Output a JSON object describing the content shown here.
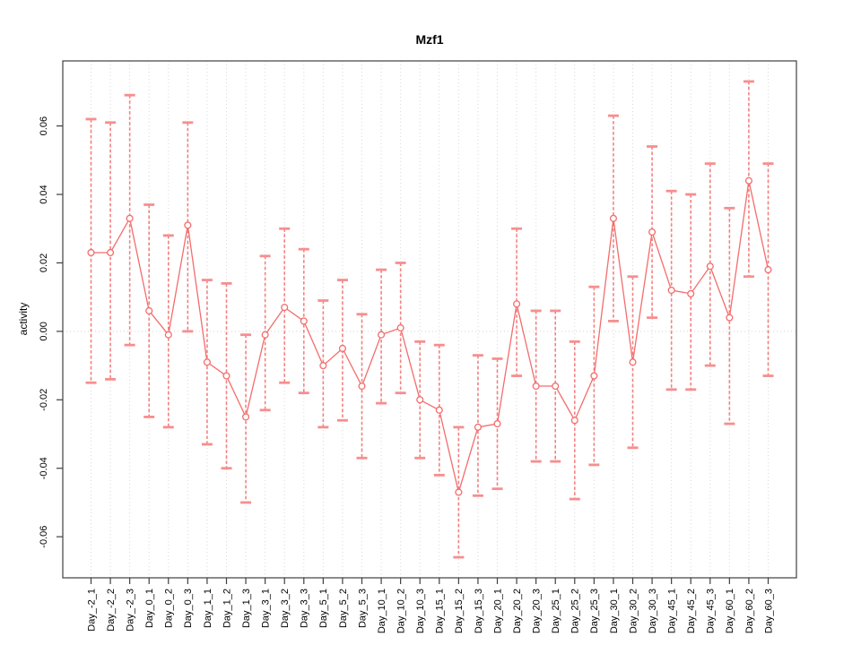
{
  "chart_data": {
    "type": "line",
    "title": "Mzf1",
    "ylabel": "activity",
    "xlabel": "",
    "legend": "none",
    "marker": "open-circle",
    "grid": "vertical dotted gridline per category; dotted horizontal line at y=0",
    "ylim": [
      -0.072,
      0.079
    ],
    "yticks": [
      0.06,
      0.04,
      0.02,
      0,
      -0.02,
      -0.04,
      -0.06
    ],
    "categories": [
      "Day_-2_1",
      "Day_-2_2",
      "Day_-2_3",
      "Day_0_1",
      "Day_0_2",
      "Day_0_3",
      "Day_1_1",
      "Day_1_2",
      "Day_1_3",
      "Day_3_1",
      "Day_3_2",
      "Day_3_3",
      "Day_5_1",
      "Day_5_2",
      "Day_5_3",
      "Day_10_1",
      "Day_10_2",
      "Day_10_3",
      "Day_15_1",
      "Day_15_2",
      "Day_15_3",
      "Day_20_1",
      "Day_20_2",
      "Day_20_3",
      "Day_25_1",
      "Day_25_2",
      "Day_25_3",
      "Day_30_1",
      "Day_30_2",
      "Day_30_3",
      "Day_45_1",
      "Day_45_2",
      "Day_45_3",
      "Day_60_1",
      "Day_60_2",
      "Day_60_3"
    ],
    "series": [
      {
        "name": "activity",
        "values": [
          0.023,
          0.023,
          0.033,
          0.006,
          -0.001,
          0.031,
          -0.009,
          -0.013,
          -0.025,
          -0.001,
          0.007,
          0.003,
          -0.01,
          -0.005,
          -0.016,
          -0.001,
          0.001,
          -0.02,
          -0.023,
          -0.047,
          -0.028,
          -0.027,
          0.008,
          -0.016,
          -0.016,
          -0.026,
          -0.013,
          0.033,
          -0.009,
          0.029,
          0.012,
          0.011,
          0.019,
          0.004,
          0.044,
          0.018
        ],
        "upper": [
          0.062,
          0.061,
          0.069,
          0.037,
          0.028,
          0.061,
          0.015,
          0.014,
          -0.001,
          0.022,
          0.03,
          0.024,
          0.009,
          0.015,
          0.005,
          0.018,
          0.02,
          -0.003,
          -0.004,
          -0.028,
          -0.007,
          -0.008,
          0.03,
          0.006,
          0.006,
          -0.003,
          0.013,
          0.063,
          0.016,
          0.054,
          0.041,
          0.04,
          0.049,
          0.036,
          0.073,
          0.049
        ],
        "lower": [
          -0.015,
          -0.014,
          -0.004,
          -0.025,
          -0.028,
          0.0,
          -0.033,
          -0.04,
          -0.05,
          -0.023,
          -0.015,
          -0.018,
          -0.028,
          -0.026,
          -0.037,
          -0.021,
          -0.018,
          -0.037,
          -0.042,
          -0.066,
          -0.048,
          -0.046,
          -0.013,
          -0.038,
          -0.038,
          -0.049,
          -0.039,
          0.003,
          -0.034,
          0.004,
          -0.017,
          -0.017,
          -0.01,
          -0.027,
          0.016,
          -0.013
        ]
      }
    ],
    "colors": {
      "line": "#f46c6c",
      "error_stem": "#f47474",
      "error_cap": "#f78e8e",
      "marker_fill": "#ffffff",
      "grid": "#d9d9d9",
      "zero_line": "#d4d4d4",
      "frame": "#3f3f3f",
      "text": "#000000",
      "background": "#ffffff"
    }
  }
}
